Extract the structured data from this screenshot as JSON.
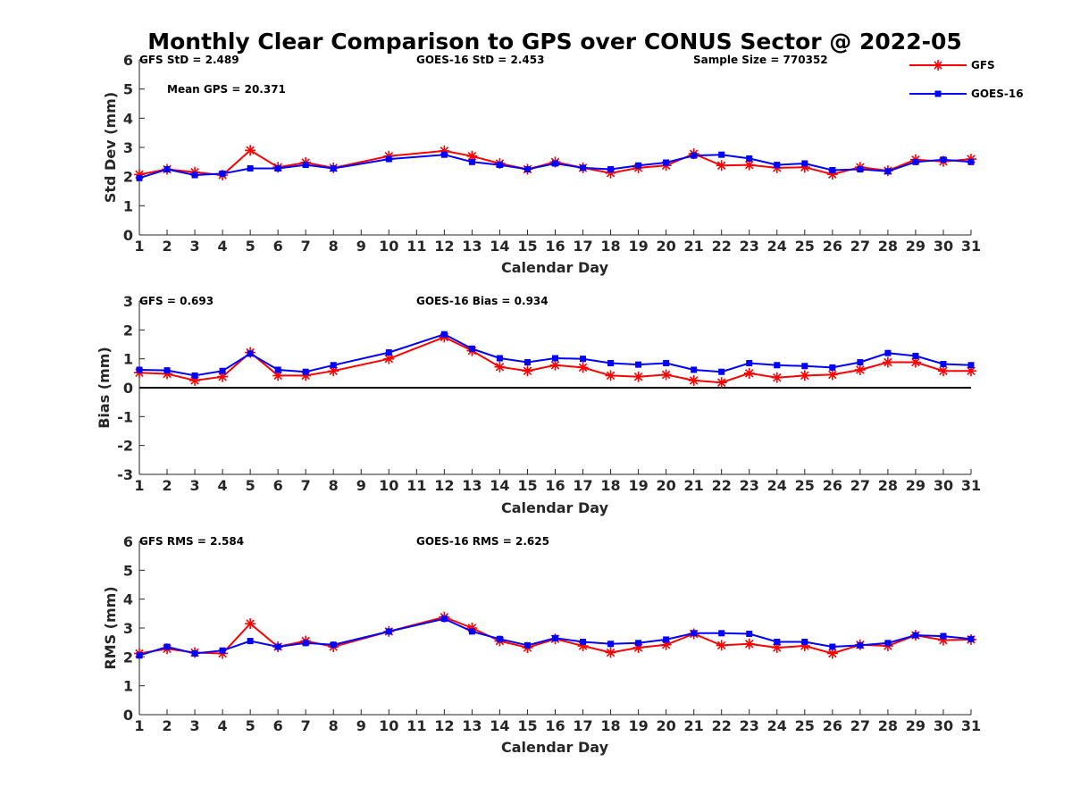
{
  "title": "Monthly Clear Comparison to GPS over CONUS Sector @ 2022-05",
  "legend": {
    "placement": "top-right",
    "items": [
      {
        "label": "GFS",
        "color": "#ff0000",
        "marker": "asterisk"
      },
      {
        "label": "GOES-16",
        "color": "#0000ff",
        "marker": "square"
      }
    ]
  },
  "chart_data": [
    {
      "type": "line",
      "xlabel": "Calendar Day",
      "ylabel": "Std Dev (mm)",
      "ylim": [
        0,
        6
      ],
      "yticks": [
        0,
        1,
        2,
        3,
        4,
        5,
        6
      ],
      "xlim": [
        1,
        31
      ],
      "xticks": [
        1,
        2,
        3,
        4,
        5,
        6,
        7,
        8,
        9,
        10,
        11,
        12,
        13,
        14,
        15,
        16,
        17,
        18,
        19,
        20,
        21,
        22,
        23,
        24,
        25,
        26,
        27,
        28,
        29,
        30,
        31
      ],
      "zero_line": false,
      "annotations": [
        "GFS StD = 2.489",
        "GOES-16 StD = 2.453",
        "Sample Size = 770352",
        "Mean GPS = 20.371"
      ],
      "x": [
        1,
        2,
        3,
        4,
        5,
        6,
        7,
        8,
        10,
        12,
        13,
        14,
        15,
        16,
        17,
        18,
        19,
        20,
        21,
        22,
        23,
        24,
        25,
        26,
        27,
        28,
        29,
        30,
        31
      ],
      "series": [
        {
          "name": "GFS",
          "color": "#ff0000",
          "marker": "asterisk",
          "values": [
            2.07,
            2.25,
            2.15,
            2.05,
            2.9,
            2.32,
            2.48,
            2.3,
            2.7,
            2.88,
            2.7,
            2.45,
            2.25,
            2.5,
            2.3,
            2.12,
            2.3,
            2.38,
            2.78,
            2.38,
            2.4,
            2.3,
            2.32,
            2.08,
            2.32,
            2.2,
            2.58,
            2.52,
            2.6
          ]
        },
        {
          "name": "GOES-16",
          "color": "#0000ff",
          "marker": "square",
          "values": [
            1.95,
            2.25,
            2.05,
            2.1,
            2.28,
            2.28,
            2.4,
            2.28,
            2.6,
            2.75,
            2.5,
            2.4,
            2.25,
            2.45,
            2.3,
            2.25,
            2.38,
            2.48,
            2.72,
            2.75,
            2.62,
            2.4,
            2.45,
            2.22,
            2.25,
            2.18,
            2.5,
            2.58,
            2.5
          ]
        }
      ]
    },
    {
      "type": "line",
      "xlabel": "Calendar Day",
      "ylabel": "Bias (mm)",
      "ylim": [
        -3,
        3
      ],
      "yticks": [
        -3,
        -2,
        -1,
        0,
        1,
        2,
        3
      ],
      "xlim": [
        1,
        31
      ],
      "xticks": [
        1,
        2,
        3,
        4,
        5,
        6,
        7,
        8,
        9,
        10,
        11,
        12,
        13,
        14,
        15,
        16,
        17,
        18,
        19,
        20,
        21,
        22,
        23,
        24,
        25,
        26,
        27,
        28,
        29,
        30,
        31
      ],
      "zero_line": true,
      "annotations": [
        "GFS = 0.693",
        "GOES-16 Bias = 0.934"
      ],
      "x": [
        1,
        2,
        3,
        4,
        5,
        6,
        7,
        8,
        10,
        12,
        13,
        14,
        15,
        16,
        17,
        18,
        19,
        20,
        21,
        22,
        23,
        24,
        25,
        26,
        27,
        28,
        29,
        30,
        31
      ],
      "series": [
        {
          "name": "GFS",
          "color": "#ff0000",
          "marker": "asterisk",
          "values": [
            0.52,
            0.48,
            0.25,
            0.38,
            1.22,
            0.42,
            0.42,
            0.58,
            1.0,
            1.75,
            1.28,
            0.72,
            0.58,
            0.78,
            0.7,
            0.42,
            0.38,
            0.45,
            0.25,
            0.18,
            0.5,
            0.35,
            0.42,
            0.45,
            0.62,
            0.88,
            0.88,
            0.58,
            0.58
          ]
        },
        {
          "name": "GOES-16",
          "color": "#0000ff",
          "marker": "square",
          "values": [
            0.62,
            0.6,
            0.42,
            0.58,
            1.18,
            0.62,
            0.55,
            0.78,
            1.22,
            1.85,
            1.35,
            1.02,
            0.88,
            1.02,
            1.0,
            0.85,
            0.8,
            0.85,
            0.62,
            0.55,
            0.85,
            0.78,
            0.75,
            0.7,
            0.88,
            1.2,
            1.1,
            0.82,
            0.78
          ]
        }
      ]
    },
    {
      "type": "line",
      "xlabel": "Calendar Day",
      "ylabel": "RMS (mm)",
      "ylim": [
        0,
        6
      ],
      "yticks": [
        0,
        1,
        2,
        3,
        4,
        5,
        6
      ],
      "xlim": [
        1,
        31
      ],
      "xticks": [
        1,
        2,
        3,
        4,
        5,
        6,
        7,
        8,
        9,
        10,
        11,
        12,
        13,
        14,
        15,
        16,
        17,
        18,
        19,
        20,
        21,
        22,
        23,
        24,
        25,
        26,
        27,
        28,
        29,
        30,
        31
      ],
      "zero_line": false,
      "annotations": [
        "GFS RMS = 2.584",
        "GOES-16 RMS = 2.625"
      ],
      "x": [
        1,
        2,
        3,
        4,
        5,
        6,
        7,
        8,
        10,
        12,
        13,
        14,
        15,
        16,
        17,
        18,
        19,
        20,
        21,
        22,
        23,
        24,
        25,
        26,
        27,
        28,
        29,
        30,
        31
      ],
      "series": [
        {
          "name": "GFS",
          "color": "#ff0000",
          "marker": "asterisk",
          "values": [
            2.12,
            2.28,
            2.15,
            2.12,
            3.15,
            2.35,
            2.55,
            2.35,
            2.88,
            3.38,
            3.0,
            2.55,
            2.32,
            2.62,
            2.38,
            2.15,
            2.32,
            2.42,
            2.8,
            2.4,
            2.45,
            2.32,
            2.38,
            2.12,
            2.42,
            2.38,
            2.75,
            2.58,
            2.6
          ]
        },
        {
          "name": "GOES-16",
          "color": "#0000ff",
          "marker": "square",
          "values": [
            2.05,
            2.35,
            2.12,
            2.22,
            2.55,
            2.35,
            2.48,
            2.42,
            2.88,
            3.32,
            2.88,
            2.62,
            2.4,
            2.65,
            2.52,
            2.45,
            2.48,
            2.6,
            2.82,
            2.82,
            2.8,
            2.52,
            2.52,
            2.35,
            2.4,
            2.48,
            2.75,
            2.72,
            2.62
          ]
        }
      ]
    }
  ]
}
